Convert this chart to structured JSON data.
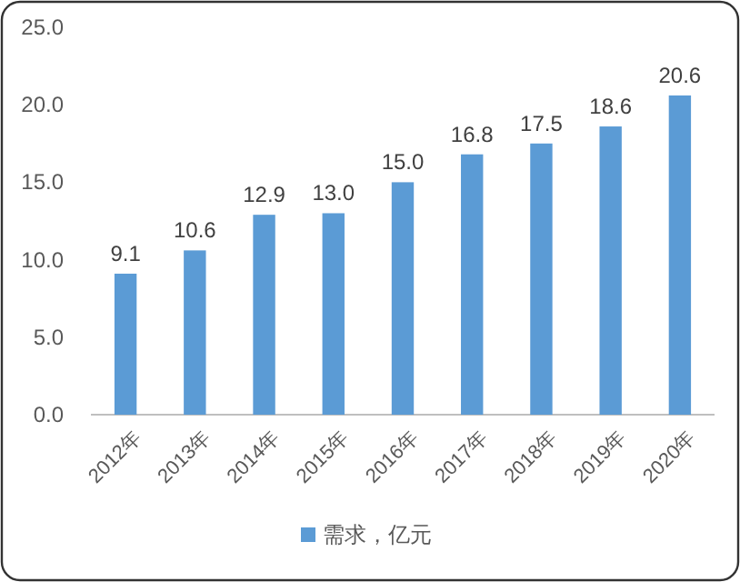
{
  "chart_data": {
    "type": "bar",
    "categories": [
      "2012年",
      "2013年",
      "2014年",
      "2015年",
      "2016年",
      "2017年",
      "2018年",
      "2019年",
      "2020年"
    ],
    "series": [
      {
        "name": "需求，亿元",
        "color": "#5b9bd5",
        "values": [
          9.1,
          10.6,
          12.9,
          13.0,
          15.0,
          16.8,
          17.5,
          18.6,
          20.6
        ],
        "value_labels": [
          "9.1",
          "10.6",
          "12.9",
          "13.0",
          "15.0",
          "16.8",
          "17.5",
          "18.6",
          "20.6"
        ]
      }
    ],
    "ylim": [
      0,
      25
    ],
    "yticks": [
      {
        "value": 0,
        "label": "0.0"
      },
      {
        "value": 5,
        "label": "5.0"
      },
      {
        "value": 10,
        "label": "10.0"
      },
      {
        "value": 15,
        "label": "15.0"
      },
      {
        "value": 20,
        "label": "20.0"
      },
      {
        "value": 25,
        "label": "25.0"
      }
    ],
    "legend": "bottom"
  }
}
